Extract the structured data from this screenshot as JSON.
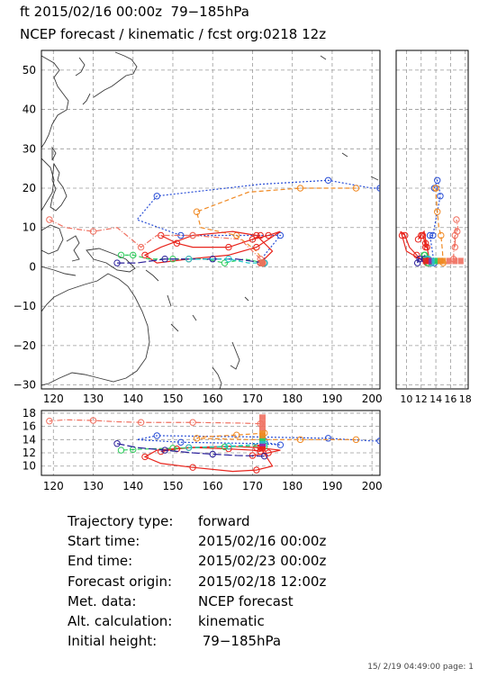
{
  "header": {
    "line1": "ft 2015/02/16 00:00z  79−185hPa",
    "line2": "NCEP forecast / kinematic / fcst org:0218 12z"
  },
  "footer": "15/ 2/19 04:49:00 page: 1",
  "info_rows": [
    {
      "label": "Trajectory type:",
      "value": "forward"
    },
    {
      "label": "Start time:",
      "value": "2015/02/16 00:00z"
    },
    {
      "label": "End time:",
      "value": "2015/02/23 00:00z"
    },
    {
      "label": "Forecast origin:",
      "value": "2015/02/18 12:00z"
    },
    {
      "label": "Met. data:",
      "value": "NCEP forecast"
    },
    {
      "label": "Alt. calculation:",
      "value": "kinematic"
    },
    {
      "label": "Initial height:",
      "value": " 79−185hPa"
    }
  ],
  "colors": {
    "red": "#e8251d",
    "salmon": "#f07060",
    "orange": "#f08a24",
    "blue": "#2a4fd6",
    "navy": "#2a1f9a",
    "green": "#2ecc5c",
    "cyan": "#22c8c8",
    "purple": "#8a2bb8",
    "grid": "#9a9a9a",
    "coast": "#3a3a3a"
  },
  "chart_data": {
    "type": "line",
    "map_axes": {
      "xlim": [
        117,
        202
      ],
      "ylim": [
        -31,
        55
      ],
      "xticks": [
        120,
        130,
        140,
        150,
        160,
        170,
        180,
        190,
        200
      ],
      "yticks": [
        -30,
        -20,
        -10,
        0,
        10,
        20,
        30,
        40,
        50
      ]
    },
    "height_axes": {
      "ylim": [
        8.6,
        18.4
      ],
      "yticks": [
        10,
        12,
        14,
        16,
        18
      ]
    },
    "side_axes": {
      "xlim": [
        8.6,
        18.4
      ],
      "xticks": [
        10,
        12,
        14,
        16,
        18
      ]
    },
    "series": [
      {
        "color": "blue",
        "style": "dotted",
        "lon": [
          173,
          173,
          177,
          172,
          152,
          141,
          146,
          172,
          189,
          200,
          202
        ],
        "lat": [
          1,
          3,
          8,
          8,
          8,
          12,
          18,
          21,
          22,
          20,
          20
        ],
        "hgt": [
          13.8,
          13.6,
          13.2,
          13.4,
          13.6,
          14.0,
          14.6,
          14.4,
          14.2,
          13.8,
          13.8
        ]
      },
      {
        "color": "orange",
        "style": "dashed",
        "lon": [
          173,
          171,
          166,
          157,
          156,
          169,
          182,
          196
        ],
        "lat": [
          1,
          4,
          8,
          10,
          14,
          19,
          20,
          20
        ],
        "hgt": [
          15.0,
          14.9,
          14.7,
          14.4,
          14.2,
          14.0,
          14.0,
          14.0
        ]
      },
      {
        "color": "red",
        "style": "solid",
        "lon": [
          172,
          175,
          171,
          165,
          155,
          147,
          143,
          146,
          154,
          164,
          171,
          177,
          174,
          170
        ],
        "lat": [
          1,
          4,
          8,
          9,
          8,
          5,
          3,
          1,
          2,
          3,
          5,
          9,
          8,
          7
        ],
        "hgt": [
          12.8,
          10.0,
          9.4,
          9.2,
          9.8,
          10.4,
          11.4,
          12.4,
          12.8,
          13.0,
          12.8,
          12.4,
          12.0,
          11.6
        ]
      },
      {
        "color": "red",
        "style": "solid",
        "lon": [
          172,
          170,
          164,
          155,
          151,
          147
        ],
        "lat": [
          8,
          7,
          5,
          5,
          6,
          8
        ],
        "hgt": [
          12.2,
          12.4,
          12.6,
          12.8,
          12.6,
          12.2
        ]
      },
      {
        "color": "salmon",
        "style": "dashdot",
        "lon": [
          172,
          167,
          155,
          146,
          142,
          136,
          130,
          123,
          119
        ],
        "lat": [
          2,
          7,
          8,
          8,
          5,
          10,
          9,
          10,
          12
        ],
        "hgt": [
          16.4,
          16.5,
          16.6,
          16.6,
          16.6,
          16.7,
          16.9,
          17.0,
          16.8
        ]
      },
      {
        "color": "green",
        "style": "dashed",
        "lon": [
          173,
          168,
          163,
          158,
          150,
          144,
          140,
          137
        ],
        "lat": [
          1,
          2,
          1,
          2,
          2,
          2,
          3,
          3
        ],
        "hgt": [
          13.0,
          13.0,
          12.9,
          12.8,
          12.7,
          12.6,
          12.5,
          12.4
        ]
      },
      {
        "color": "navy",
        "style": "longdash",
        "lon": [
          173,
          166,
          160,
          155,
          148,
          141,
          136
        ],
        "lat": [
          1,
          2,
          2,
          2,
          2,
          1,
          1
        ],
        "hgt": [
          11.5,
          11.6,
          11.8,
          12.0,
          12.4,
          12.8,
          13.4
        ]
      },
      {
        "color": "cyan",
        "style": "dashed",
        "lon": [
          173,
          169,
          164,
          159,
          154
        ],
        "lat": [
          1,
          1,
          2,
          2,
          2
        ],
        "hgt": [
          13.4,
          13.2,
          13.0,
          12.9,
          12.8
        ]
      }
    ],
    "start_points": [
      {
        "color": "red",
        "lon": 172.5,
        "hgt": 12.6
      },
      {
        "color": "red",
        "lon": 172.5,
        "hgt": 13.0
      },
      {
        "color": "purple",
        "lon": 172.5,
        "hgt": 13.4
      },
      {
        "color": "cyan",
        "lon": 172.5,
        "hgt": 13.8
      },
      {
        "color": "green",
        "lon": 172.5,
        "hgt": 14.2
      },
      {
        "color": "orange",
        "lon": 172.5,
        "hgt": 14.6
      },
      {
        "color": "orange",
        "lon": 172.5,
        "hgt": 15.0
      },
      {
        "color": "salmon",
        "lon": 172.5,
        "hgt": 15.8
      },
      {
        "color": "salmon",
        "lon": 172.5,
        "hgt": 16.6
      },
      {
        "color": "salmon",
        "lon": 172.5,
        "hgt": 17.4
      }
    ]
  }
}
